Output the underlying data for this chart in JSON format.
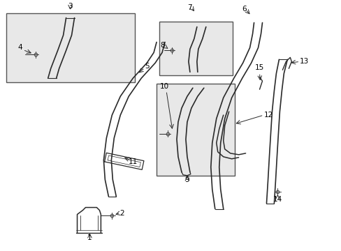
{
  "bg_color": "#ffffff",
  "line_color": "#2a2a2a",
  "box_bg": "#e8e8e8",
  "fig_width": 4.89,
  "fig_height": 3.6,
  "dpi": 100
}
